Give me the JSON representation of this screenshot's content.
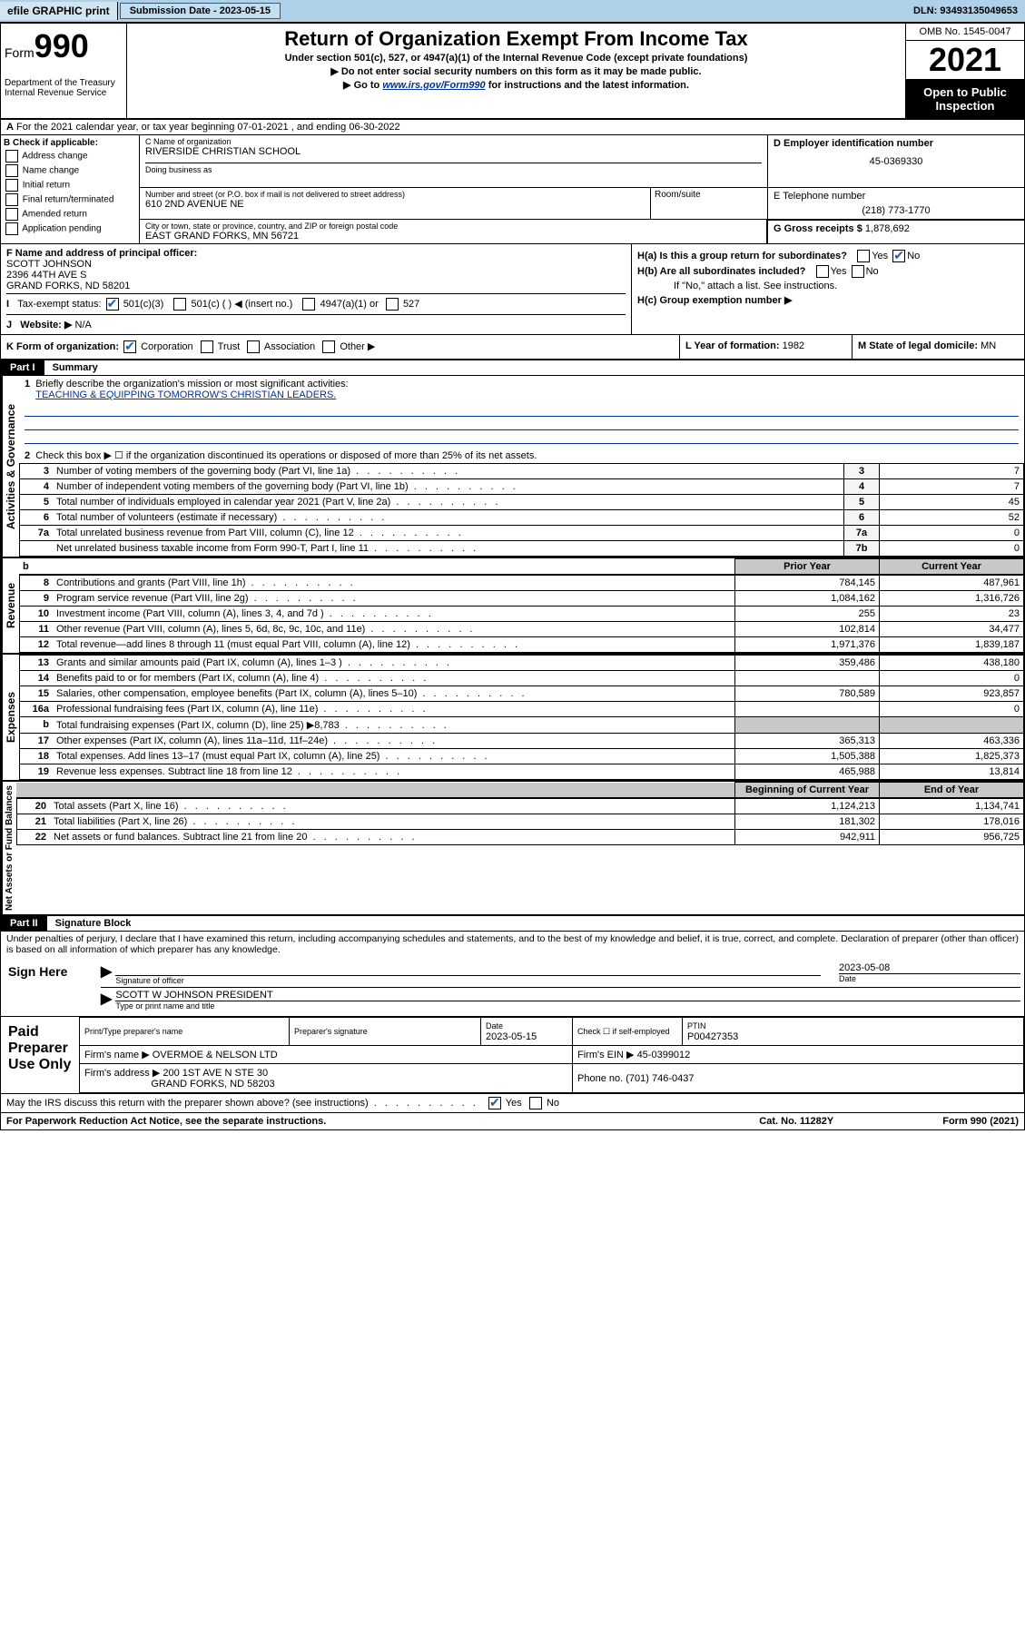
{
  "topbar": {
    "efile": "efile GRAPHIC print",
    "submission_label": "Submission Date - 2023-05-15",
    "dln": "DLN: 93493135049653"
  },
  "header": {
    "form_prefix": "Form",
    "form_num": "990",
    "dept": "Department of the Treasury Internal Revenue Service",
    "title": "Return of Organization Exempt From Income Tax",
    "sub1": "Under section 501(c), 527, or 4947(a)(1) of the Internal Revenue Code (except private foundations)",
    "sub2": "▶ Do not enter social security numbers on this form as it may be made public.",
    "sub3_pre": "▶ Go to ",
    "sub3_link": "www.irs.gov/Form990",
    "sub3_post": " for instructions and the latest information.",
    "omb": "OMB No. 1545-0047",
    "year": "2021",
    "open": "Open to Public Inspection"
  },
  "rowA": "For the 2021 calendar year, or tax year beginning 07-01-2021   , and ending 06-30-2022",
  "colB": {
    "label": "B Check if applicable:",
    "opts": [
      "Address change",
      "Name change",
      "Initial return",
      "Final return/terminated",
      "Amended return",
      "Application pending"
    ]
  },
  "colC": {
    "name_label": "C Name of organization",
    "name": "RIVERSIDE CHRISTIAN SCHOOL",
    "dba_label": "Doing business as",
    "addr_label": "Number and street (or P.O. box if mail is not delivered to street address)",
    "addr": "610 2ND AVENUE NE",
    "room_label": "Room/suite",
    "city_label": "City or town, state or province, country, and ZIP or foreign postal code",
    "city": "EAST GRAND FORKS, MN  56721"
  },
  "colD": {
    "label": "D Employer identification number",
    "val": "45-0369330"
  },
  "colE": {
    "label": "E Telephone number",
    "val": "(218) 773-1770"
  },
  "colG": {
    "label": "G Gross receipts $",
    "val": "1,878,692"
  },
  "colF": {
    "label": "F Name and address of principal officer:",
    "name": "SCOTT JOHNSON",
    "addr1": "2396 44TH AVE S",
    "addr2": "GRAND FORKS, ND  58201"
  },
  "colH": {
    "a": "H(a)  Is this a group return for subordinates?",
    "b": "H(b)  Are all subordinates included?",
    "b_note": "If \"No,\" attach a list. See instructions.",
    "c": "H(c)  Group exemption number ▶"
  },
  "rowI": {
    "label": "Tax-exempt status:",
    "o1": "501(c)(3)",
    "o2": "501(c) (  ) ◀ (insert no.)",
    "o3": "4947(a)(1) or",
    "o4": "527"
  },
  "rowJ": {
    "label": "Website: ▶",
    "val": "N/A"
  },
  "rowK": {
    "label": "K Form of organization:",
    "opts": [
      "Corporation",
      "Trust",
      "Association",
      "Other ▶"
    ],
    "l_label": "L Year of formation:",
    "l_val": "1982",
    "m_label": "M State of legal domicile:",
    "m_val": "MN"
  },
  "part1": {
    "hdr": "Part I",
    "title": "Summary",
    "line1_label": "Briefly describe the organization's mission or most significant activities:",
    "line1_val": "TEACHING & EQUIPPING TOMORROW'S CHRISTIAN LEADERS.",
    "line2": "Check this box ▶ ☐  if the organization discontinued its operations or disposed of more than 25% of its net assets.",
    "lines_gov": [
      {
        "n": "3",
        "desc": "Number of voting members of the governing body (Part VI, line 1a)",
        "box": "3",
        "val": "7"
      },
      {
        "n": "4",
        "desc": "Number of independent voting members of the governing body (Part VI, line 1b)",
        "box": "4",
        "val": "7"
      },
      {
        "n": "5",
        "desc": "Total number of individuals employed in calendar year 2021 (Part V, line 2a)",
        "box": "5",
        "val": "45"
      },
      {
        "n": "6",
        "desc": "Total number of volunteers (estimate if necessary)",
        "box": "6",
        "val": "52"
      },
      {
        "n": "7a",
        "desc": "Total unrelated business revenue from Part VIII, column (C), line 12",
        "box": "7a",
        "val": "0"
      },
      {
        "n": "",
        "desc": "Net unrelated business taxable income from Form 990-T, Part I, line 11",
        "box": "7b",
        "val": "0"
      }
    ],
    "prior_hdr": "Prior Year",
    "current_hdr": "Current Year",
    "lines_rev": [
      {
        "n": "8",
        "desc": "Contributions and grants (Part VIII, line 1h)",
        "prior": "784,145",
        "curr": "487,961"
      },
      {
        "n": "9",
        "desc": "Program service revenue (Part VIII, line 2g)",
        "prior": "1,084,162",
        "curr": "1,316,726"
      },
      {
        "n": "10",
        "desc": "Investment income (Part VIII, column (A), lines 3, 4, and 7d )",
        "prior": "255",
        "curr": "23"
      },
      {
        "n": "11",
        "desc": "Other revenue (Part VIII, column (A), lines 5, 6d, 8c, 9c, 10c, and 11e)",
        "prior": "102,814",
        "curr": "34,477"
      },
      {
        "n": "12",
        "desc": "Total revenue—add lines 8 through 11 (must equal Part VIII, column (A), line 12)",
        "prior": "1,971,376",
        "curr": "1,839,187"
      }
    ],
    "lines_exp": [
      {
        "n": "13",
        "desc": "Grants and similar amounts paid (Part IX, column (A), lines 1–3 )",
        "prior": "359,486",
        "curr": "438,180"
      },
      {
        "n": "14",
        "desc": "Benefits paid to or for members (Part IX, column (A), line 4)",
        "prior": "",
        "curr": "0"
      },
      {
        "n": "15",
        "desc": "Salaries, other compensation, employee benefits (Part IX, column (A), lines 5–10)",
        "prior": "780,589",
        "curr": "923,857"
      },
      {
        "n": "16a",
        "desc": "Professional fundraising fees (Part IX, column (A), line 11e)",
        "prior": "",
        "curr": "0"
      },
      {
        "n": "b",
        "desc": "Total fundraising expenses (Part IX, column (D), line 25) ▶8,783",
        "prior": "shaded",
        "curr": "shaded"
      },
      {
        "n": "17",
        "desc": "Other expenses (Part IX, column (A), lines 11a–11d, 11f–24e)",
        "prior": "365,313",
        "curr": "463,336"
      },
      {
        "n": "18",
        "desc": "Total expenses. Add lines 13–17 (must equal Part IX, column (A), line 25)",
        "prior": "1,505,388",
        "curr": "1,825,373"
      },
      {
        "n": "19",
        "desc": "Revenue less expenses. Subtract line 18 from line 12",
        "prior": "465,988",
        "curr": "13,814"
      }
    ],
    "begin_hdr": "Beginning of Current Year",
    "end_hdr": "End of Year",
    "lines_net": [
      {
        "n": "20",
        "desc": "Total assets (Part X, line 16)",
        "prior": "1,124,213",
        "curr": "1,134,741"
      },
      {
        "n": "21",
        "desc": "Total liabilities (Part X, line 26)",
        "prior": "181,302",
        "curr": "178,016"
      },
      {
        "n": "22",
        "desc": "Net assets or fund balances. Subtract line 21 from line 20",
        "prior": "942,911",
        "curr": "956,725"
      }
    ],
    "side_gov": "Activities & Governance",
    "side_rev": "Revenue",
    "side_exp": "Expenses",
    "side_net": "Net Assets or Fund Balances"
  },
  "part2": {
    "hdr": "Part II",
    "title": "Signature Block",
    "penalty": "Under penalties of perjury, I declare that I have examined this return, including accompanying schedules and statements, and to the best of my knowledge and belief, it is true, correct, and complete. Declaration of preparer (other than officer) is based on all information of which preparer has any knowledge.",
    "sign_here": "Sign Here",
    "sig_officer": "Signature of officer",
    "sig_date": "2023-05-08",
    "date_lbl": "Date",
    "sig_name": "SCOTT W JOHNSON  PRESIDENT",
    "sig_name_lbl": "Type or print name and title",
    "paid": "Paid Preparer Use Only",
    "prep_name_lbl": "Print/Type preparer's name",
    "prep_sig_lbl": "Preparer's signature",
    "prep_date_lbl": "Date",
    "prep_date": "2023-05-15",
    "prep_check": "Check ☐ if self-employed",
    "ptin_lbl": "PTIN",
    "ptin": "P00427353",
    "firm_name_lbl": "Firm's name    ▶",
    "firm_name": "OVERMOE & NELSON LTD",
    "firm_ein_lbl": "Firm's EIN ▶",
    "firm_ein": "45-0399012",
    "firm_addr_lbl": "Firm's address ▶",
    "firm_addr1": "200 1ST AVE N STE 30",
    "firm_addr2": "GRAND FORKS, ND  58203",
    "phone_lbl": "Phone no.",
    "phone": "(701) 746-0437",
    "discuss": "May the IRS discuss this return with the preparer shown above? (see instructions)"
  },
  "footer": {
    "left": "For Paperwork Reduction Act Notice, see the separate instructions.",
    "mid": "Cat. No. 11282Y",
    "right": "Form 990 (2021)"
  },
  "yes": "Yes",
  "no": "No"
}
